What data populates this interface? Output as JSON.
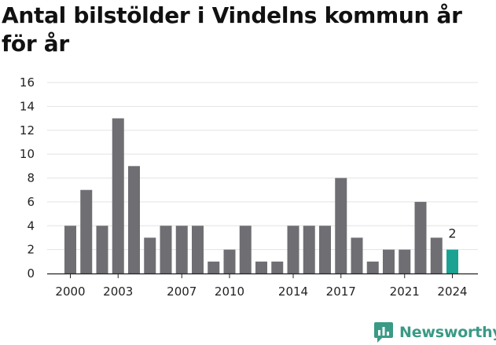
{
  "title": "Antal bilstölder i Vindelns kommun år för år",
  "brand": "Newsworthy",
  "chart_data": {
    "type": "bar",
    "x": [
      2000,
      2001,
      2002,
      2003,
      2004,
      2005,
      2006,
      2007,
      2008,
      2009,
      2010,
      2011,
      2012,
      2013,
      2014,
      2015,
      2016,
      2017,
      2018,
      2019,
      2020,
      2021,
      2022,
      2023,
      2024
    ],
    "values": [
      4,
      7,
      4,
      13,
      9,
      3,
      4,
      4,
      4,
      1,
      2,
      4,
      1,
      1,
      4,
      4,
      4,
      8,
      3,
      1,
      2,
      2,
      6,
      3,
      2
    ],
    "xticks": [
      2000,
      2003,
      2007,
      2010,
      2014,
      2017,
      2021,
      2024
    ],
    "yticks": [
      0,
      2,
      4,
      6,
      8,
      10,
      12,
      14,
      16
    ],
    "ylim": [
      0,
      16
    ],
    "grid": true,
    "highlight": {
      "index": 24,
      "label": "2"
    },
    "colors": {
      "bar": "#6f6e73",
      "highlight": "#1aa392",
      "grid": "#e3e3e3",
      "axis": "#222222"
    }
  }
}
